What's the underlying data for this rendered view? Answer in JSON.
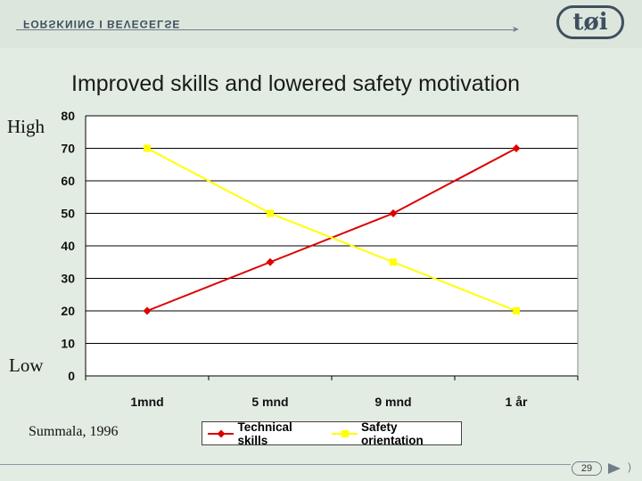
{
  "header": {
    "org_text": "FORSKNING I BEVEGELSE",
    "logo_text": "tøi"
  },
  "title": "Improved skills and lowered safety motivation",
  "axis_words": {
    "high": "High",
    "low": "Low"
  },
  "citation": "Summala, 1996",
  "page_number": "29",
  "chart_data": {
    "type": "line",
    "title": "Improved skills and lowered safety motivation",
    "categories": [
      "1mnd",
      "5 mnd",
      "9 mnd",
      "1 år"
    ],
    "yticks": [
      0,
      10,
      20,
      30,
      40,
      50,
      60,
      70,
      80
    ],
    "ylim": [
      0,
      80
    ],
    "grid": true,
    "legend_position": "bottom",
    "series": [
      {
        "name": "Technical skills",
        "values": [
          20,
          35,
          50,
          70
        ],
        "color": "#dd0000",
        "marker": "diamond"
      },
      {
        "name": "Safety orientation",
        "values": [
          70,
          50,
          35,
          20
        ],
        "color": "#ffff00",
        "marker": "square"
      }
    ],
    "plot_background": "#ffffff"
  }
}
